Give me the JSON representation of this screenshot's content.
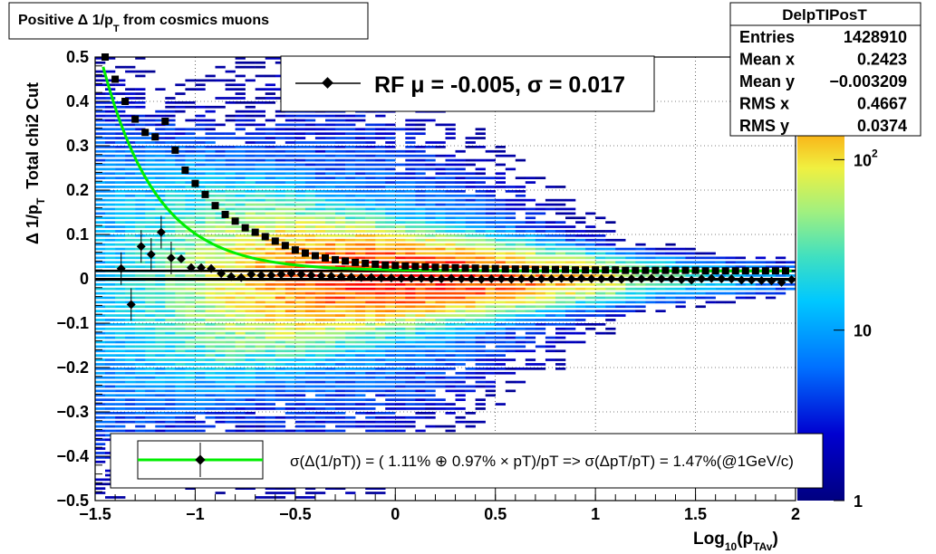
{
  "title": {
    "main": "Positive Δ 1/p",
    "sub": "T",
    "rest": " from cosmics muons"
  },
  "stats": {
    "name": "DelpTIPosT",
    "rows": [
      {
        "label": "Entries",
        "value": "1428910"
      },
      {
        "label": "Mean x",
        "value": "0.2423"
      },
      {
        "label": "Mean y",
        "value": "−0.003209"
      },
      {
        "label": "RMS x",
        "value": "0.4667"
      },
      {
        "label": "RMS y",
        "value": "0.0374"
      }
    ]
  },
  "legend_top": {
    "text": "RF μ = -0.005, σ =   0.017"
  },
  "legend_bottom": {
    "text": "σ(Δ(1/pT)) = ( 1.11% ⊕  0.97% × pT)/pT => σ(ΔpT/pT) =  1.47%(@1GeV/c)"
  },
  "xlabel": {
    "main": "Log",
    "sub1": "10",
    "mid": "(p",
    "sub2": "TAv",
    "end": ")"
  },
  "ylabel": {
    "main": "Δ 1/p",
    "sub": "T",
    "extra": "Total chi2 Cut"
  },
  "colorbar": {
    "labels": [
      {
        "text": "1",
        "v": 1
      },
      {
        "text": "10",
        "v": 10
      },
      {
        "text": "10",
        "sup": "2",
        "v": 100
      }
    ],
    "log_range": [
      1,
      400
    ]
  },
  "colors": {
    "fit_curve": "#00ee00",
    "profile": "#000000",
    "frame": "#000000"
  },
  "chart_data": {
    "type": "heatmap",
    "xlim": [
      -1.5,
      2.0
    ],
    "ylim": [
      -0.5,
      0.5
    ],
    "x_ticks": [
      "−1.5",
      "−1",
      "−0.5",
      "0",
      "0.5",
      "1",
      "1.5",
      "2"
    ],
    "x_tick_values": [
      -1.5,
      -1,
      -0.5,
      0,
      0.5,
      1,
      1.5,
      2
    ],
    "y_ticks": [
      "−0.5",
      "−0.4",
      "−0.3",
      "−0.2",
      "−0.1",
      "0",
      "0.1",
      "0.2",
      "0.3",
      "0.4",
      "0.5"
    ],
    "y_tick_values": [
      -0.5,
      -0.4,
      -0.3,
      -0.2,
      -0.1,
      0,
      0.1,
      0.2,
      0.3,
      0.4,
      0.5
    ],
    "grid": true,
    "z_scale": "log",
    "sigma_points": {
      "x": [
        -1.45,
        -1.4,
        -1.35,
        -1.3,
        -1.25,
        -1.2,
        -1.15,
        -1.1,
        -1.05,
        -1.0,
        -0.95,
        -0.9,
        -0.85,
        -0.8,
        -0.75,
        -0.7,
        -0.65,
        -0.6,
        -0.55,
        -0.5,
        -0.45,
        -0.4,
        -0.35,
        -0.3,
        -0.25,
        -0.2,
        -0.15,
        -0.1,
        -0.05,
        0.0,
        0.05,
        0.1,
        0.15,
        0.2,
        0.25,
        0.3,
        0.35,
        0.4,
        0.45,
        0.5,
        0.55,
        0.6,
        0.65,
        0.7,
        0.75,
        0.8,
        0.85,
        0.9,
        0.95,
        1.0,
        1.05,
        1.1,
        1.15,
        1.2,
        1.25,
        1.3,
        1.35,
        1.4,
        1.45,
        1.5,
        1.55,
        1.6,
        1.65,
        1.7,
        1.75,
        1.8,
        1.85,
        1.9,
        1.95
      ],
      "y": [
        0.5,
        0.45,
        0.4,
        0.36,
        0.33,
        0.32,
        0.355,
        0.29,
        0.245,
        0.215,
        0.19,
        0.165,
        0.145,
        0.13,
        0.115,
        0.105,
        0.095,
        0.085,
        0.075,
        0.065,
        0.058,
        0.052,
        0.047,
        0.043,
        0.04,
        0.037,
        0.035,
        0.033,
        0.031,
        0.03,
        0.029,
        0.028,
        0.027,
        0.026,
        0.025,
        0.025,
        0.024,
        0.024,
        0.023,
        0.023,
        0.022,
        0.022,
        0.022,
        0.021,
        0.021,
        0.021,
        0.021,
        0.02,
        0.02,
        0.02,
        0.02,
        0.02,
        0.019,
        0.019,
        0.019,
        0.019,
        0.019,
        0.019,
        0.019,
        0.019,
        0.018,
        0.018,
        0.018,
        0.018,
        0.018,
        0.018,
        0.018,
        0.018,
        0.018
      ]
    },
    "mean_points": {
      "x": [
        -1.37,
        -1.32,
        -1.27,
        -1.22,
        -1.17,
        -1.12,
        -1.07,
        -1.02,
        -0.97,
        -0.92,
        -0.87,
        -0.82,
        -0.77,
        -0.72,
        -0.67,
        -0.62,
        -0.57,
        -0.52,
        -0.47,
        -0.42,
        -0.37,
        -0.32,
        -0.27,
        -0.22,
        -0.17,
        -0.12,
        -0.07,
        -0.02,
        0.03,
        0.08,
        0.13,
        0.18,
        0.23,
        0.28,
        0.33,
        0.38,
        0.43,
        0.48,
        0.53,
        0.58,
        0.63,
        0.68,
        0.73,
        0.78,
        0.83,
        0.88,
        0.93,
        0.98,
        1.03,
        1.08,
        1.13,
        1.18,
        1.23,
        1.28,
        1.33,
        1.38,
        1.43,
        1.48,
        1.53,
        1.58,
        1.63,
        1.68,
        1.73,
        1.78,
        1.83,
        1.88,
        1.93,
        1.98
      ],
      "y": [
        0.023,
        -0.058,
        0.073,
        0.055,
        0.105,
        0.047,
        0.045,
        0.025,
        0.025,
        0.023,
        0.012,
        0.005,
        0.003,
        0.01,
        0.008,
        0.008,
        0.01,
        0.012,
        0.01,
        0.008,
        0.007,
        0.006,
        0.005,
        0.004,
        0.003,
        0.003,
        0.002,
        0.002,
        0.001,
        0.001,
        0.001,
        0.0,
        0.0,
        0.001,
        0.0,
        0.0,
        -0.001,
        0.0,
        0.0,
        -0.001,
        0.0,
        0.0,
        0.0,
        0.0,
        0.001,
        0.0,
        0.001,
        0.0,
        0.0,
        0.0,
        -0.001,
        0.0,
        0.0,
        0.001,
        0.0,
        0.0,
        -0.002,
        -0.003,
        0.0,
        0.001,
        0.0,
        0.0,
        -0.003,
        -0.003,
        -0.004,
        -0.005,
        -0.008,
        -0.002
      ]
    }
  }
}
